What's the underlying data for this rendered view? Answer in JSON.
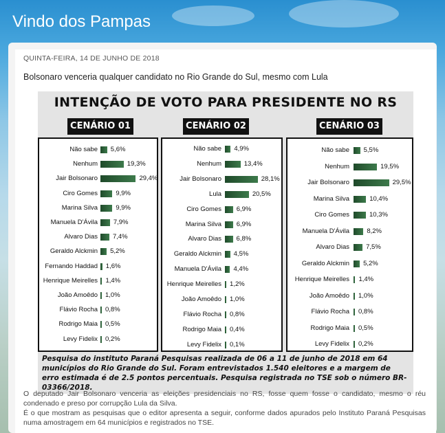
{
  "blog": {
    "title": "Vindo dos Pampas"
  },
  "post": {
    "date": "QUINTA-FEIRA, 14 DE JUNHO DE 2018",
    "title": "Bolsonaro venceria qualquer candidato no Rio Grande do Sul, mesmo com Lula",
    "paragraph1": "O deputado Jair Bolsonaro venceria as eleições presidenciais no RS, fosse quem fosse o candidato, mesmo o réu condenado e preso por corrupção Lula da Silva.",
    "paragraph2": "É o que mostram as pesquisas que o editor apresenta a seguir, conforme dados apurados pelo Instituto Paraná Pesquisas numa amostragem em 64 municípios e registrados no TSE."
  },
  "infographic": {
    "caption": "Pesquisa do instituto Paraná Pesquisas realizada de 06 a 11 de junho de 2018 em 64 municípios do Rio Grande do Sul. Foram entrevistados 1.540 eleitores e a margem de erro estimada é de 2.5 pontos percentuais. Pesquisa registrada no TSE sob o número BR-03366/2018."
  },
  "chart_data": [
    {
      "type": "bar",
      "title": "INTENÇÃO DE VOTO PARA PRESIDENTE NO RS",
      "subtitle": "CENÁRIO 01",
      "bar_color": "#2f6b3d",
      "categories": [
        "Não sabe",
        "Nenhum",
        "Jair Bolsonaro",
        "Ciro Gomes",
        "Marina Silva",
        "Manuela D'Ávila",
        "Alvaro Dias",
        "Geraldo Alckmin",
        "Fernando Haddad",
        "Henrique Meirelles",
        "João Amoêdo",
        "Flávio Rocha",
        "Rodrigo Maia",
        "Levy Fidelix"
      ],
      "values": [
        5.6,
        19.3,
        29.4,
        9.9,
        9.9,
        7.9,
        7.4,
        5.2,
        1.6,
        1.4,
        1.0,
        0.8,
        0.5,
        0.2
      ],
      "labels": [
        "5,6%",
        "19,3%",
        "29,4%",
        "9,9%",
        "9,9%",
        "7,9%",
        "7,4%",
        "5,2%",
        "1,6%",
        "1,4%",
        "1,0%",
        "0,8%",
        "0,5%",
        "0,2%"
      ]
    },
    {
      "type": "bar",
      "subtitle": "CENÁRIO 02",
      "bar_color": "#2f6b3d",
      "categories": [
        "Não sabe",
        "Nenhum",
        "Jair Bolsonaro",
        "Lula",
        "Ciro Gomes",
        "Marina Silva",
        "Alvaro Dias",
        "Geraldo Alckmin",
        "Manuela D'Ávila",
        "Henrique Meirelles",
        "João Amoêdo",
        "Flávio Rocha",
        "Rodrigo Maia",
        "Levy Fidelix"
      ],
      "values": [
        4.9,
        13.4,
        28.1,
        20.5,
        6.9,
        6.9,
        6.8,
        4.5,
        4.4,
        1.2,
        1.0,
        0.8,
        0.4,
        0.1
      ],
      "labels": [
        "4,9%",
        "13,4%",
        "28,1%",
        "20,5%",
        "6,9%",
        "6,9%",
        "6,8%",
        "4,5%",
        "4,4%",
        "1,2%",
        "1,0%",
        "0,8%",
        "0,4%",
        "0,1%"
      ]
    },
    {
      "type": "bar",
      "subtitle": "CENÁRIO 03",
      "bar_color": "#2f6b3d",
      "categories": [
        "Não sabe",
        "Nenhum",
        "Jair Bolsonaro",
        "Marina Silva",
        "Ciro Gomes",
        "Manuela D'Ávila",
        "Alvaro Dias",
        "Geraldo Alckmin",
        "Henrique Meirelles",
        "João Amoêdo",
        "Flávio Rocha",
        "Rodrigo Maia",
        "Levy Fidelix"
      ],
      "values": [
        5.5,
        19.5,
        29.5,
        10.4,
        10.3,
        8.2,
        7.5,
        5.2,
        1.4,
        1.0,
        0.8,
        0.5,
        0.2
      ],
      "labels": [
        "5,5%",
        "19,5%",
        "29,5%",
        "10,4%",
        "10,3%",
        "8,2%",
        "7,5%",
        "5,2%",
        "1,4%",
        "1,0%",
        "0,8%",
        "0,5%",
        "0,2%"
      ]
    }
  ]
}
